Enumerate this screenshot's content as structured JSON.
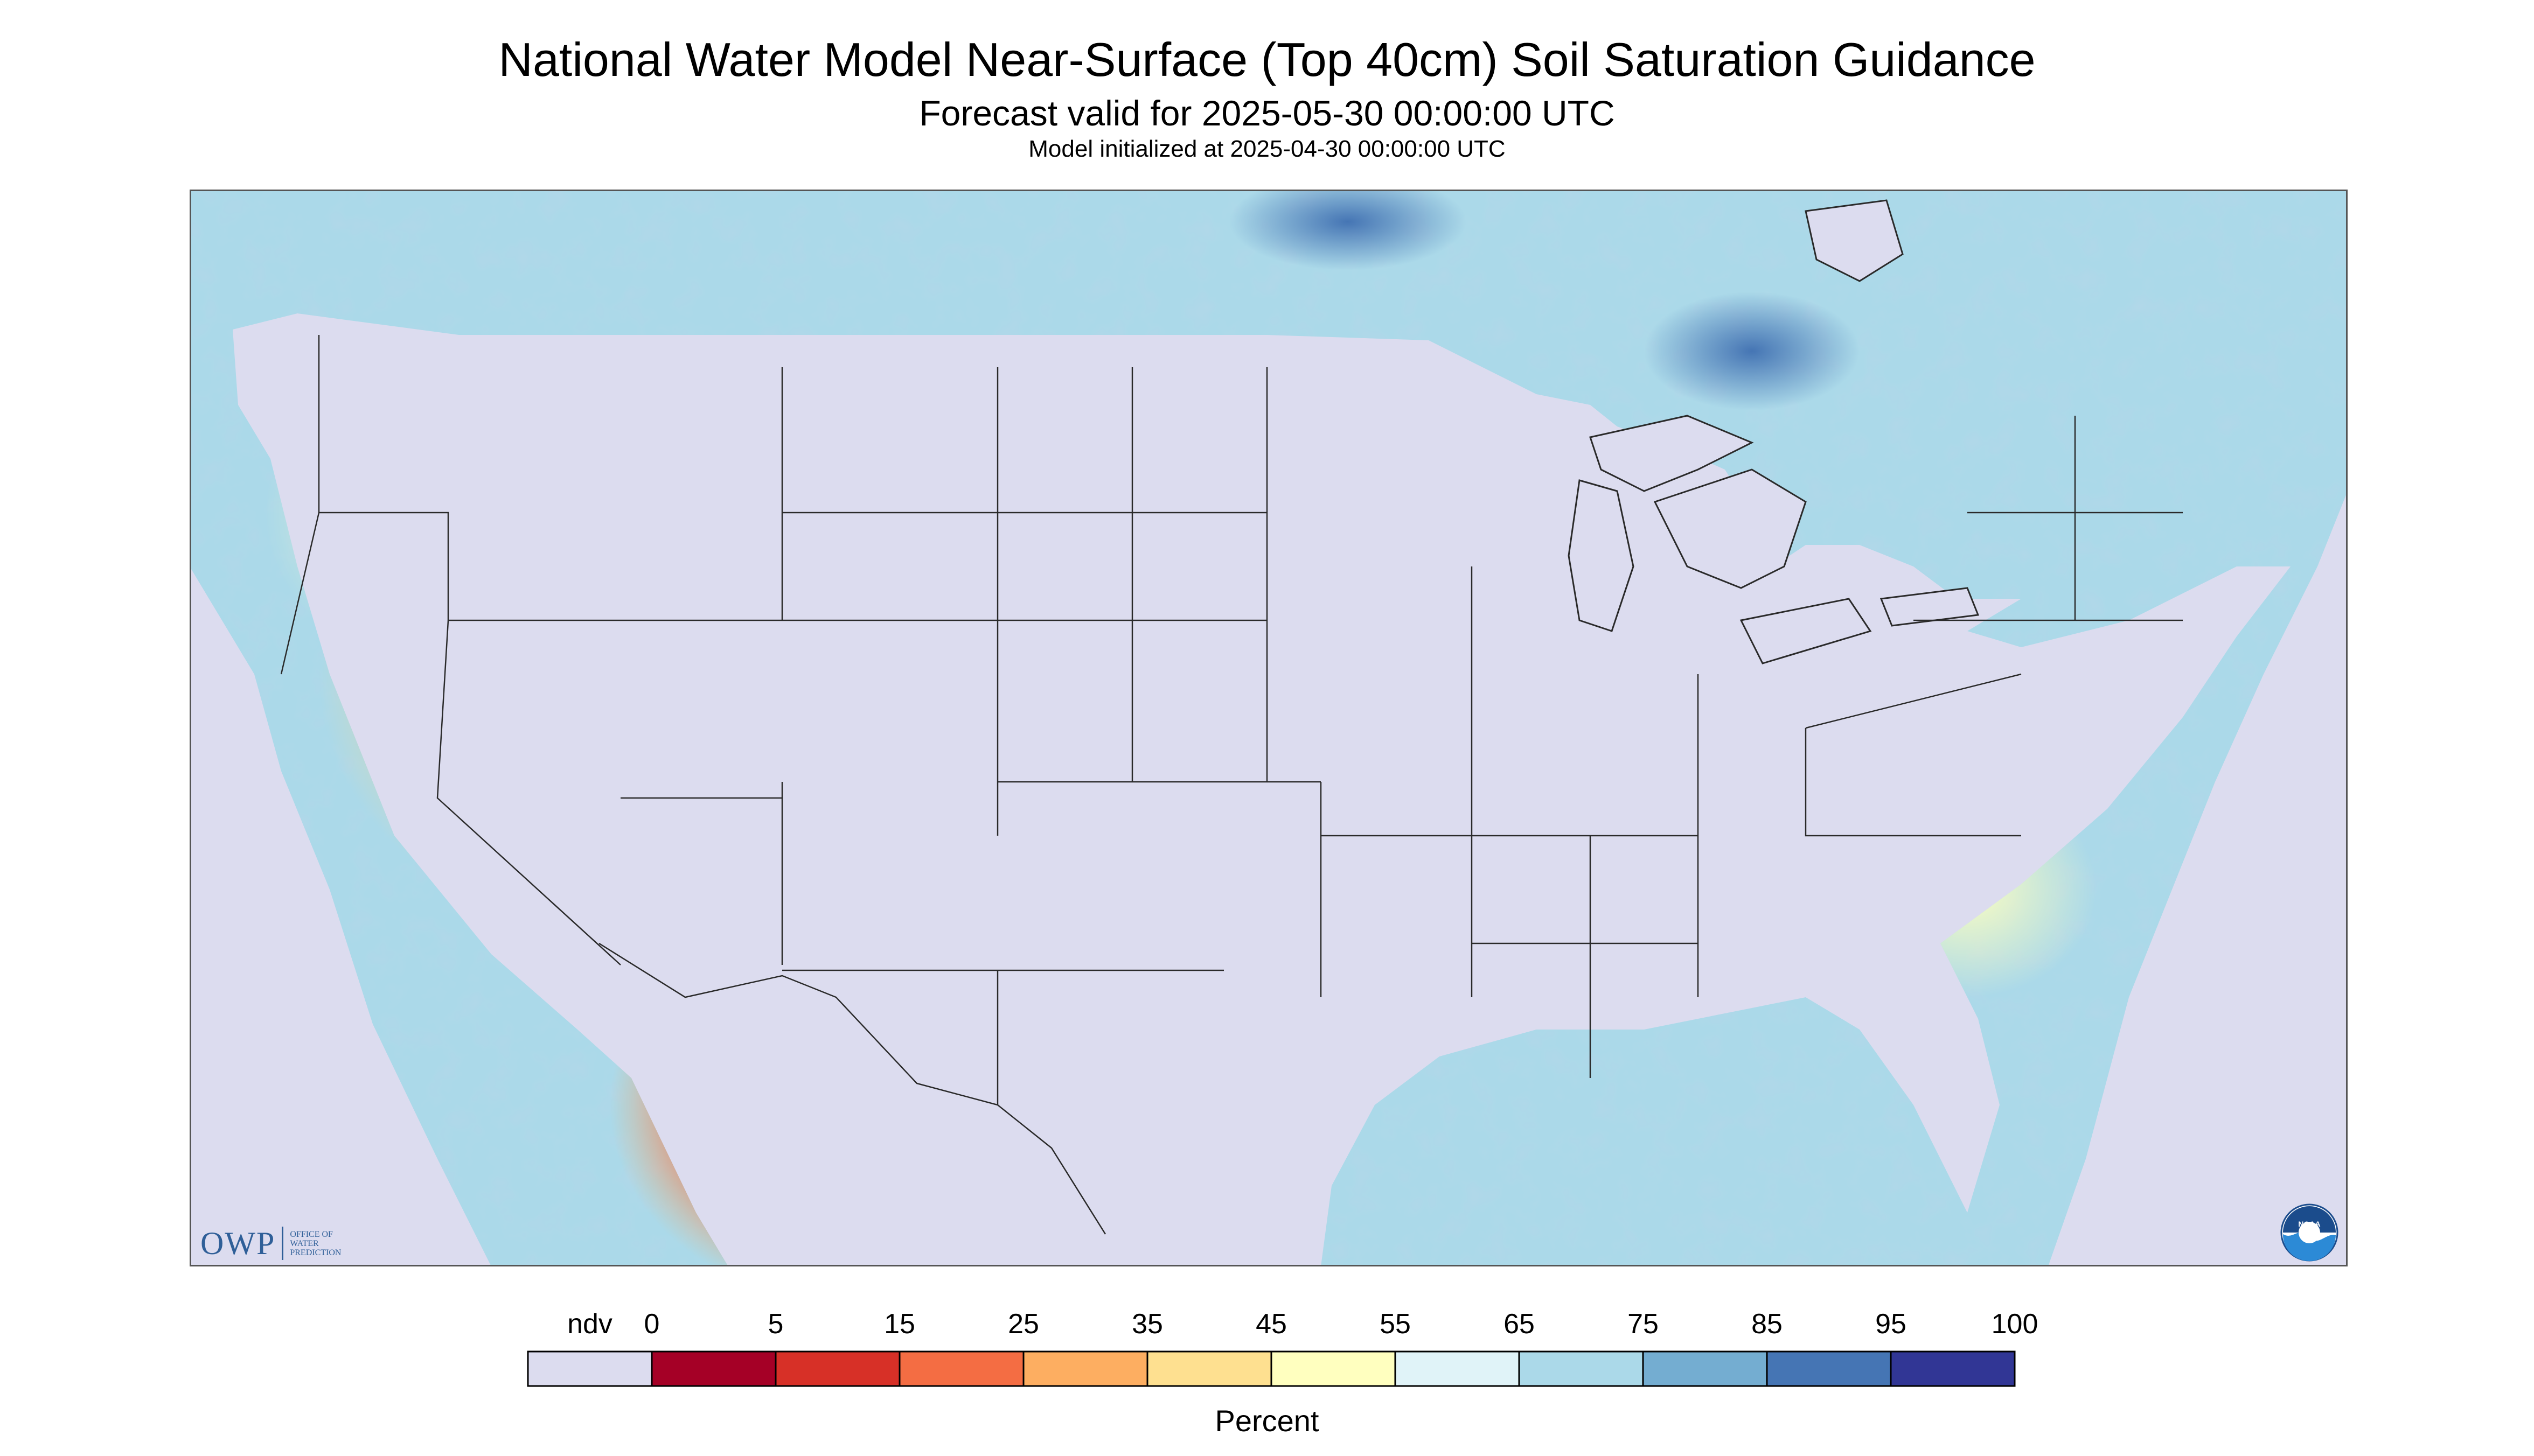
{
  "header": {
    "title": "National Water Model Near-Surface (Top 40cm) Soil Saturation Guidance",
    "forecast": "Forecast valid for 2025-05-30 00:00:00 UTC",
    "initialized": "Model initialized at 2025-04-30 00:00:00 UTC"
  },
  "map": {
    "subject": "Near-surface soil saturation, contiguous United States",
    "background_color": "#dcdcef",
    "boundary_color": "#2a2a2a"
  },
  "logos": {
    "owp": {
      "mark": "OWP",
      "lines": [
        "OFFICE OF",
        "WATER",
        "PREDICTION"
      ]
    },
    "noaa": {
      "mark": "NOAA"
    }
  },
  "legend": {
    "title": "Percent",
    "tick_labels": [
      "ndv",
      "0",
      "5",
      "15",
      "25",
      "35",
      "45",
      "55",
      "65",
      "75",
      "85",
      "95",
      "100"
    ],
    "colors": [
      "#dcdcef",
      "#a50026",
      "#d73027",
      "#f46d43",
      "#fdae61",
      "#fee090",
      "#ffffbf",
      "#e0f3f8",
      "#abd9e9",
      "#74add1",
      "#4575b4",
      "#313695"
    ]
  }
}
